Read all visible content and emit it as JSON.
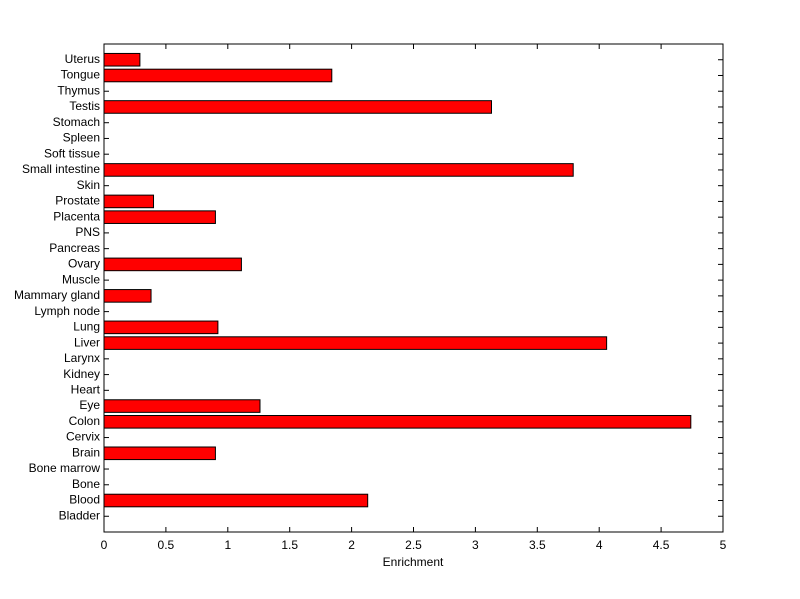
{
  "chart_data": {
    "type": "barh",
    "xlabel": "Enrichment",
    "categories": [
      "Bladder",
      "Blood",
      "Bone",
      "Bone marrow",
      "Brain",
      "Cervix",
      "Colon",
      "Eye",
      "Heart",
      "Kidney",
      "Larynx",
      "Liver",
      "Lung",
      "Lymph node",
      "Mammary gland",
      "Muscle",
      "Ovary",
      "Pancreas",
      "PNS",
      "Placenta",
      "Prostate",
      "Skin",
      "Small intestine",
      "Soft tissue",
      "Spleen",
      "Stomach",
      "Testis",
      "Thymus",
      "Tongue",
      "Uterus"
    ],
    "values": [
      0,
      2.13,
      0,
      0,
      0.9,
      0,
      4.74,
      1.26,
      0,
      0,
      0,
      4.06,
      0.92,
      0,
      0.38,
      0,
      1.11,
      0,
      0,
      0.9,
      0.4,
      0,
      3.79,
      0,
      0,
      0,
      3.13,
      0,
      1.84,
      0.29
    ],
    "color": "#ff0000",
    "xlim": [
      0,
      5
    ],
    "xticks": [
      0,
      0.5,
      1,
      1.5,
      2,
      2.5,
      3,
      3.5,
      4,
      4.5,
      5
    ]
  }
}
